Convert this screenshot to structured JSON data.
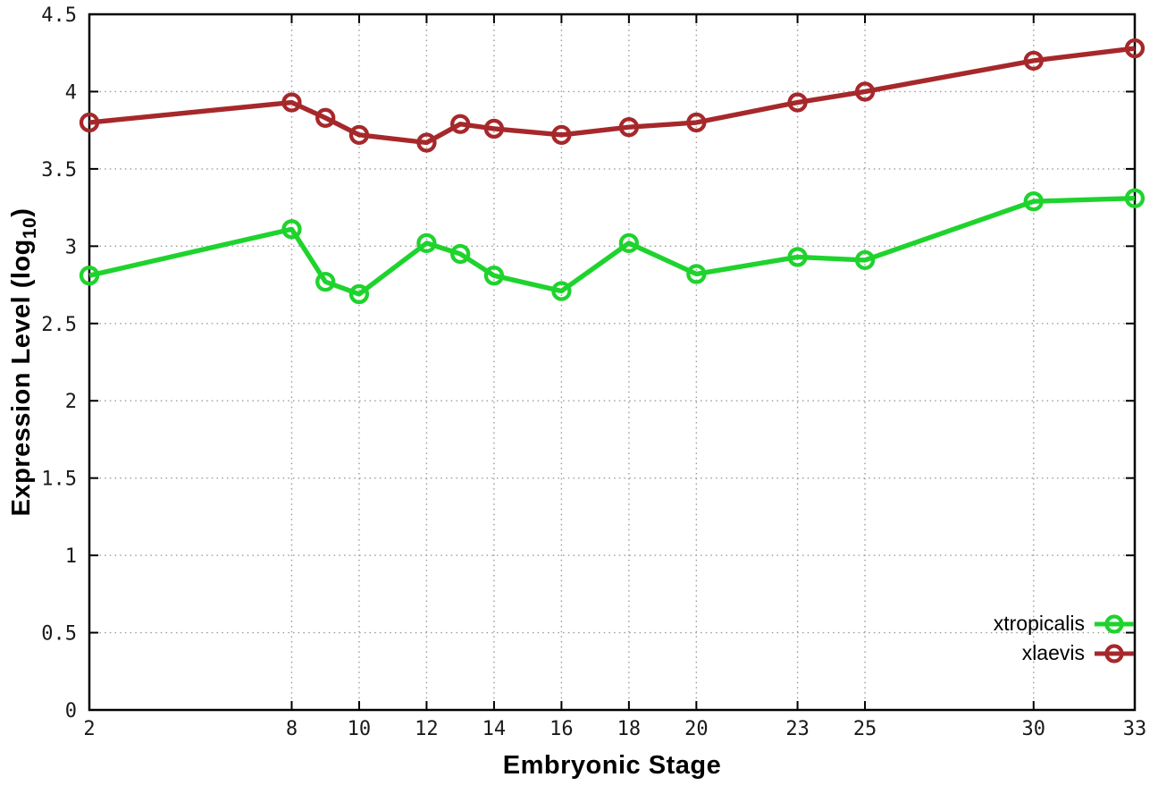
{
  "chart_data": {
    "type": "line",
    "title": "",
    "xlabel": "Embryonic Stage",
    "ylabel": "Expression Level (log10)",
    "ylabel_parts": {
      "prefix": "Expression Level (log",
      "subscript": "10",
      "suffix": ")"
    },
    "xlim": [
      2,
      33
    ],
    "ylim": [
      0,
      4.5
    ],
    "grid": true,
    "legend_position": "inside-bottom-right",
    "x": [
      2,
      8,
      9,
      10,
      12,
      13,
      14,
      16,
      18,
      20,
      23,
      25,
      30,
      33
    ],
    "x_tick_labels": [
      "2",
      "8",
      "10",
      "12",
      "14",
      "16",
      "18",
      "20",
      "23",
      "25",
      "30",
      "33"
    ],
    "y_tick_values": [
      0,
      0.5,
      1,
      1.5,
      2,
      2.5,
      3,
      3.5,
      4,
      4.5
    ],
    "y_tick_labels": [
      "0",
      "0.5",
      "1",
      "1.5",
      "2",
      "2.5",
      "3",
      "3.5",
      "4",
      "4.5"
    ],
    "series": [
      {
        "name": "xtropicalis",
        "color": "#1ed32d",
        "marker": "open-circle",
        "values": [
          2.81,
          3.11,
          2.77,
          2.69,
          3.02,
          2.95,
          2.81,
          2.71,
          3.02,
          2.82,
          2.93,
          2.91,
          3.29,
          3.31
        ]
      },
      {
        "name": "xlaevis",
        "color": "#a6282b",
        "marker": "open-circle",
        "values": [
          3.8,
          3.93,
          3.83,
          3.72,
          3.67,
          3.79,
          3.76,
          3.72,
          3.77,
          3.8,
          3.93,
          4.0,
          4.2,
          4.28
        ]
      }
    ],
    "colors": {
      "background": "#ffffff",
      "grid": "#9a9a9a",
      "axis": "#000000",
      "text": "#1a1a1a"
    }
  }
}
